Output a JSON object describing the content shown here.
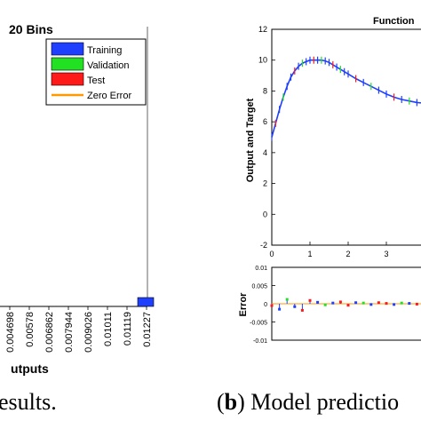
{
  "chart_data": [
    {
      "type": "bar",
      "title": "20 Bins",
      "xlabel": "Outputs",
      "ylabel": "",
      "x_ticks": [
        "0.004698",
        "0.00578",
        "0.006862",
        "0.007944",
        "0.009026",
        "0.01011",
        "0.01119",
        "0.01227"
      ],
      "legend": {
        "position": "top-right",
        "entries": [
          "Training",
          "Validation",
          "Test",
          "Zero Error"
        ]
      },
      "series": [
        {
          "name": "Training",
          "values": [
            0,
            0,
            0,
            0,
            0,
            0,
            0,
            1
          ]
        }
      ],
      "colors": {
        "Training": "#1f3fff",
        "Validation": "#22e022",
        "Test": "#ff1a1a",
        "Zero Error": "#ff9900"
      }
    },
    {
      "type": "line",
      "title": "Function",
      "xlabel": "",
      "ylabel": "Output and Target",
      "ylim": [
        -2,
        12
      ],
      "xlim": [
        0,
        4
      ],
      "y_ticks": [
        "12",
        "10",
        "8",
        "6",
        "4",
        "2",
        "0",
        "-2"
      ],
      "x_ticks": [
        "0",
        "1",
        "2",
        "3"
      ],
      "series": [
        {
          "name": "",
          "x": [
            0,
            0.1,
            0.2,
            0.3,
            0.4,
            0.5,
            0.6,
            0.7,
            0.8,
            0.9,
            1.0,
            1.1,
            1.2,
            1.3,
            1.4,
            1.5,
            1.6,
            1.7,
            1.8,
            1.9,
            2.0,
            2.2,
            2.4,
            2.6,
            2.8,
            3.0,
            3.2,
            3.4,
            3.6,
            3.8,
            4.0
          ],
          "y": [
            5.0,
            5.9,
            6.8,
            7.6,
            8.3,
            8.9,
            9.3,
            9.6,
            9.8,
            9.9,
            10.0,
            10.0,
            10.0,
            10.0,
            9.95,
            9.85,
            9.7,
            9.55,
            9.4,
            9.25,
            9.1,
            8.8,
            8.55,
            8.3,
            8.05,
            7.8,
            7.6,
            7.45,
            7.35,
            7.25,
            7.2
          ]
        }
      ],
      "colors": {
        "line": "#1f3fff",
        "training": "#1f3fff",
        "validation": "#22e022",
        "test": "#ff1a1a"
      }
    },
    {
      "type": "line",
      "title": "",
      "xlabel": "",
      "ylabel": "Error",
      "ylim": [
        -0.01,
        0.01
      ],
      "y_ticks": [
        "0.01",
        "0.005",
        "0",
        "-0.005",
        "-0.01"
      ],
      "series": [
        {
          "name": "",
          "x": [
            0,
            0.2,
            0.4,
            0.6,
            0.8,
            1.0,
            1.2,
            1.4,
            1.6,
            1.8,
            2.0,
            2.2,
            2.4,
            2.6,
            2.8,
            3.0,
            3.2,
            3.4,
            3.6,
            3.8,
            4.0
          ],
          "y": [
            -0.0005,
            -0.0015,
            0.0012,
            -0.0008,
            -0.0018,
            0.0009,
            0.0004,
            -0.0003,
            0.0002,
            0.0005,
            -0.0004,
            0.0003,
            0.0002,
            -0.0002,
            0.0003,
            0.0001,
            -0.0002,
            0.0002,
            0.0001,
            -0.0001,
            0.0
          ]
        }
      ]
    }
  ],
  "captions": {
    "left": "esults.",
    "right_bold": "b",
    "right_rest": ") Model predictio"
  }
}
